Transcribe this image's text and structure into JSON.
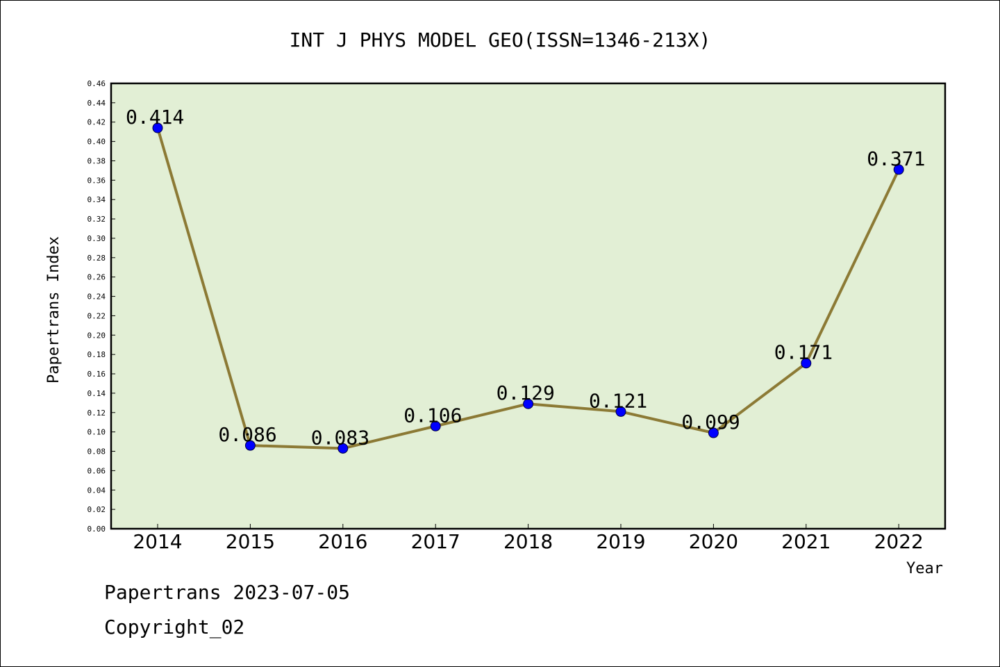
{
  "colors": {
    "plot_background": "#e2efd5",
    "line": "#8c7a35",
    "marker": "#0000ff",
    "axis": "#000000"
  },
  "footer": {
    "source_date": "Papertrans 2023-07-05",
    "copyright": "Copyright_02"
  },
  "chart_data": {
    "type": "line",
    "title": "INT J PHYS MODEL GEO(ISSN=1346-213X)",
    "xlabel": "Year",
    "ylabel": "Papertrans Index",
    "categories": [
      "2014",
      "2015",
      "2016",
      "2017",
      "2018",
      "2019",
      "2020",
      "2021",
      "2022"
    ],
    "series": [
      {
        "values": [
          0.414,
          0.086,
          0.083,
          0.106,
          0.129,
          0.121,
          0.099,
          0.171,
          0.371
        ]
      }
    ],
    "data_labels": [
      "0.414",
      "0.086",
      "0.083",
      "0.106",
      "0.129",
      "0.121",
      "0.099",
      "0.171",
      "0.371"
    ],
    "ylim": [
      0,
      0.46
    ],
    "ytick_step": 0.02,
    "yticks": [
      "0.00",
      "0.02",
      "0.04",
      "0.06",
      "0.08",
      "0.10",
      "0.12",
      "0.14",
      "0.16",
      "0.18",
      "0.20",
      "0.22",
      "0.24",
      "0.26",
      "0.28",
      "0.30",
      "0.32",
      "0.34",
      "0.36",
      "0.38",
      "0.40",
      "0.42",
      "0.44",
      "0.46"
    ],
    "grid": false,
    "legend": "none"
  }
}
